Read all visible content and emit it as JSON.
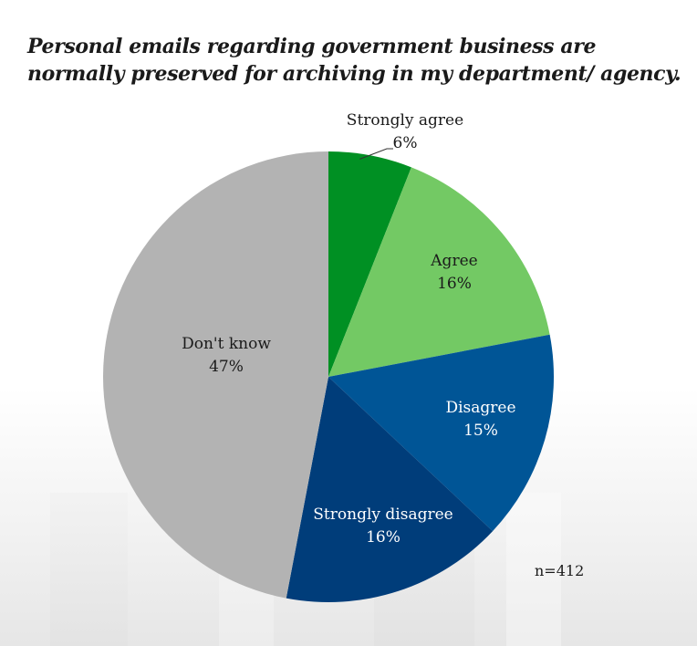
{
  "chart_data": {
    "type": "pie",
    "title": "Personal emails regarding government business are normally preserved for archiving in my department/ agency.",
    "start_angle": "12 o'clock",
    "direction": "clockwise",
    "slices": [
      {
        "label": "Strongly agree",
        "value": 6,
        "display": "6%",
        "color": "#009023",
        "label_color": "#1a1a1a",
        "label_position": "outside"
      },
      {
        "label": "Agree",
        "value": 16,
        "display": "16%",
        "color": "#73c964",
        "label_color": "#1a1a1a",
        "label_position": "inside"
      },
      {
        "label": "Disagree",
        "value": 15,
        "display": "15%",
        "color": "#005596",
        "label_color": "#ffffff",
        "label_position": "inside"
      },
      {
        "label": "Strongly disagree",
        "value": 16,
        "display": "16%",
        "color": "#003d7a",
        "label_color": "#ffffff",
        "label_position": "inside"
      },
      {
        "label": "Don't know",
        "value": 47,
        "display": "47%",
        "color": "#b3b3b3",
        "label_color": "#1a1a1a",
        "label_position": "inside"
      }
    ],
    "note": "n=412"
  }
}
